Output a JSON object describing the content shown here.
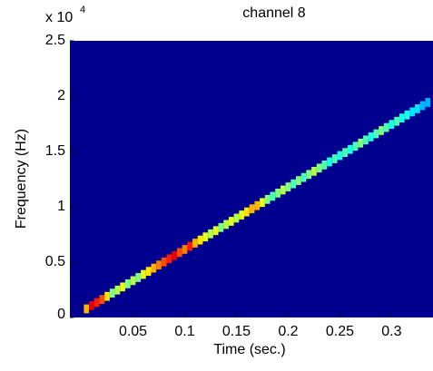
{
  "chart_data": {
    "type": "spectrogram",
    "title": "channel 8",
    "xlabel": "Time (sec.)",
    "ylabel": "Frequency (Hz)",
    "y_multiplier": "x 10",
    "y_multiplier_exponent": "4",
    "background": "#00008f",
    "colormap": "jet",
    "xlim": [
      -0.011,
      0.34
    ],
    "ylim": [
      0,
      25000
    ],
    "xticks": [
      0.05,
      0.1,
      0.15,
      0.2,
      0.25,
      0.3
    ],
    "yticks": [
      0,
      {
        "value": 5000,
        "label": "0.5"
      },
      {
        "value": 10000,
        "label": "1"
      },
      {
        "value": 15000,
        "label": "1.5"
      },
      {
        "value": 20000,
        "label": "2"
      },
      {
        "value": 25000,
        "label": "2.5"
      }
    ],
    "x": [
      0.005,
      0.01,
      0.015,
      0.02,
      0.025,
      0.03,
      0.035,
      0.04,
      0.045,
      0.05,
      0.055,
      0.06,
      0.065,
      0.07,
      0.075,
      0.08,
      0.085,
      0.09,
      0.095,
      0.1,
      0.105,
      0.11,
      0.115,
      0.12,
      0.125,
      0.13,
      0.135,
      0.14,
      0.145,
      0.15,
      0.155,
      0.16,
      0.165,
      0.17,
      0.175,
      0.18,
      0.185,
      0.19,
      0.195,
      0.2,
      0.205,
      0.21,
      0.215,
      0.22,
      0.225,
      0.23,
      0.235,
      0.24,
      0.245,
      0.25,
      0.255,
      0.26,
      0.265,
      0.27,
      0.275,
      0.28,
      0.285,
      0.29,
      0.295,
      0.3,
      0.305,
      0.31,
      0.315,
      0.32,
      0.325,
      0.33,
      0.335
    ],
    "y": [
      780,
      1065,
      1350,
      1630,
      1910,
      2200,
      2480,
      2760,
      3040,
      3330,
      3610,
      3890,
      4170,
      4460,
      4740,
      5020,
      5300,
      5590,
      5870,
      6150,
      6430,
      6720,
      7000,
      7280,
      7560,
      7850,
      8130,
      8410,
      8690,
      8980,
      9260,
      9540,
      9820,
      10110,
      10390,
      10670,
      10950,
      11240,
      11520,
      11800,
      12080,
      12370,
      12650,
      12930,
      13210,
      13500,
      13780,
      14060,
      14340,
      14630,
      14910,
      15190,
      15470,
      15760,
      16040,
      16320,
      16600,
      16890,
      17170,
      17450,
      17730,
      18020,
      18300,
      18580,
      18860,
      19150,
      19430
    ],
    "intensity": [
      0.7,
      0.9,
      0.85,
      0.8,
      0.65,
      0.5,
      0.55,
      0.6,
      0.5,
      0.55,
      0.5,
      0.6,
      0.65,
      0.7,
      0.75,
      0.8,
      0.85,
      0.9,
      0.8,
      0.75,
      0.85,
      0.7,
      0.65,
      0.6,
      0.55,
      0.6,
      0.5,
      0.55,
      0.6,
      0.55,
      0.6,
      0.65,
      0.7,
      0.7,
      0.6,
      0.5,
      0.45,
      0.5,
      0.55,
      0.5,
      0.45,
      0.5,
      0.45,
      0.5,
      0.55,
      0.5,
      0.45,
      0.4,
      0.45,
      0.4,
      0.45,
      0.4,
      0.45,
      0.5,
      0.45,
      0.4,
      0.45,
      0.5,
      0.45,
      0.4,
      0.45,
      0.4,
      0.4,
      0.35,
      0.35,
      0.3,
      0.3
    ]
  }
}
